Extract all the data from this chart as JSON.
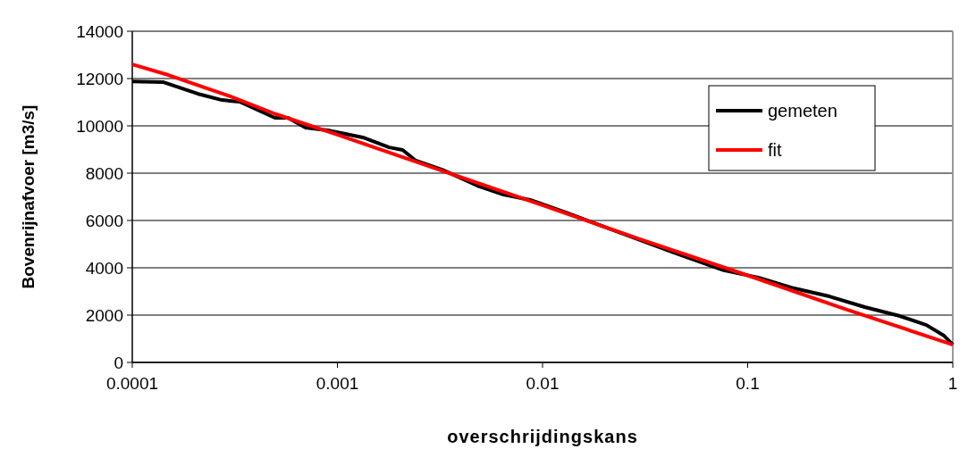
{
  "chart_data": {
    "type": "line",
    "xlabel": "overschrijdingskans",
    "ylabel": "Bovenrijnafvoer [m3/s]",
    "log": "x",
    "xlim": [
      0.0001,
      1
    ],
    "xticks": [
      0.0001,
      0.001,
      0.01,
      0.1,
      1
    ],
    "ylim": [
      0,
      14000
    ],
    "yticks": [
      0,
      2000,
      4000,
      6000,
      8000,
      10000,
      12000,
      14000
    ],
    "grid": "y",
    "legend": "top right",
    "line_style": "solid",
    "marker": "none",
    "series": [
      {
        "name": "gemeten",
        "color": "#000000",
        "x": [
          0.0001,
          0.000141,
          0.000208,
          0.000274,
          0.000334,
          0.000407,
          0.000496,
          0.000575,
          0.0007,
          0.000897,
          0.001094,
          0.00133,
          0.00179,
          0.00208,
          0.00241,
          0.00324,
          0.00481,
          0.00647,
          0.00871,
          0.01294,
          0.0234,
          0.0424,
          0.0766,
          0.1137,
          0.1687,
          0.2505,
          0.372,
          0.552,
          0.743,
          0.906,
          1
        ],
        "values": [
          11880,
          11850,
          11360,
          11090,
          11020,
          10680,
          10340,
          10340,
          9920,
          9810,
          9660,
          9510,
          9090,
          8980,
          8530,
          8150,
          7470,
          7090,
          6870,
          6340,
          5510,
          4680,
          3890,
          3580,
          3130,
          2790,
          2340,
          1960,
          1580,
          1130,
          750
        ]
      },
      {
        "name": "fit",
        "color": "#ff0000",
        "x": [
          0.0001,
          0.00015,
          0.0003,
          0.0005,
          0.001,
          0.003,
          0.01,
          0.03,
          0.1,
          0.3,
          1
        ],
        "values": [
          12600,
          12150,
          11250,
          10500,
          9630,
          8200,
          6650,
          5200,
          3680,
          2250,
          750
        ]
      }
    ]
  }
}
